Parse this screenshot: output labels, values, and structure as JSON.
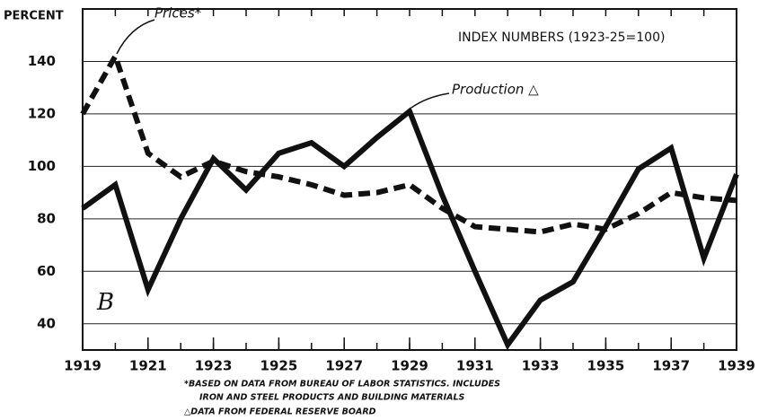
{
  "chart_data": {
    "type": "line",
    "ylabel": "PERCENT",
    "subtitle": "INDEX NUMBERS (1923-25=100)",
    "panel_label": "B",
    "footnotes": [
      "*BASED ON DATA FROM BUREAU OF LABOR STATISTICS. INCLUDES",
      "IRON AND STEEL PRODUCTS AND BUILDING MATERIALS",
      "△DATA FROM FEDERAL RESERVE BOARD"
    ],
    "x": [
      1919,
      1920,
      1921,
      1922,
      1923,
      1924,
      1925,
      1926,
      1927,
      1928,
      1929,
      1930,
      1931,
      1932,
      1933,
      1934,
      1935,
      1936,
      1937,
      1938,
      1939
    ],
    "series": [
      {
        "name": "Prices*",
        "color": "#111111",
        "dashed": true,
        "values": [
          120,
          142,
          105,
          96,
          102,
          98,
          96,
          93,
          89,
          90,
          93,
          84,
          77,
          76,
          75,
          78,
          76,
          82,
          90,
          88,
          87
        ]
      },
      {
        "name": "Production △",
        "color": "#111111",
        "dashed": false,
        "values": [
          84,
          93,
          53,
          80,
          103,
          91,
          105,
          109,
          100,
          111,
          121,
          89,
          60,
          32,
          49,
          56,
          77,
          99,
          107,
          65,
          97
        ]
      }
    ],
    "xlim": [
      1919,
      1939
    ],
    "xticks": [
      1919,
      1921,
      1923,
      1925,
      1927,
      1929,
      1931,
      1933,
      1935,
      1937,
      1939
    ],
    "ylim": [
      30,
      160
    ],
    "yticks": [
      40,
      60,
      80,
      100,
      120,
      140
    ],
    "grid": true
  }
}
